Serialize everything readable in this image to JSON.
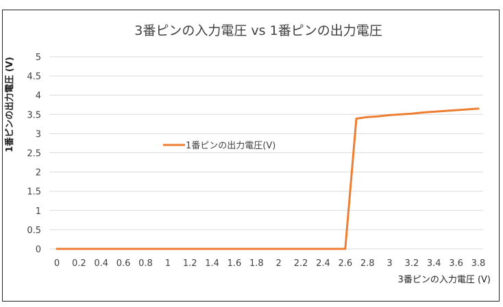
{
  "chart_data": {
    "type": "line",
    "title": "3番ピンの入力電圧 vs 1番ピンの出力電圧",
    "xlabel": "3番ピンの入力電圧 (V)",
    "ylabel": "1番ピンの出力電圧 (V)",
    "xlim": [
      0,
      3.8
    ],
    "ylim": [
      0,
      5
    ],
    "x_ticks": [
      "0",
      "0.2",
      "0.4",
      "0.6",
      "0.8",
      "1",
      "1.2",
      "1.4",
      "1.6",
      "1.8",
      "2",
      "2.2",
      "2.4",
      "2.6",
      "2.8",
      "3",
      "3.2",
      "3.4",
      "3.6",
      "3.8"
    ],
    "y_ticks": [
      "0",
      "0.5",
      "1",
      "1.5",
      "2",
      "2.5",
      "3",
      "3.5",
      "4",
      "4.5",
      "5"
    ],
    "grid": true,
    "legend_position": "center-left",
    "series": [
      {
        "name": "1番ピンの出力電圧(V)",
        "color": "#ED7D31",
        "x": [
          0,
          0.2,
          0.4,
          0.6,
          0.8,
          1.0,
          1.2,
          1.4,
          1.6,
          1.8,
          2.0,
          2.2,
          2.4,
          2.6,
          2.7,
          2.8,
          2.9,
          3.0,
          3.1,
          3.2,
          3.3,
          3.4,
          3.5,
          3.6,
          3.7,
          3.8
        ],
        "y": [
          0,
          0,
          0,
          0,
          0,
          0,
          0,
          0,
          0,
          0,
          0,
          0,
          0,
          0,
          3.39,
          3.43,
          3.45,
          3.48,
          3.5,
          3.52,
          3.55,
          3.57,
          3.59,
          3.61,
          3.63,
          3.65
        ]
      }
    ]
  }
}
